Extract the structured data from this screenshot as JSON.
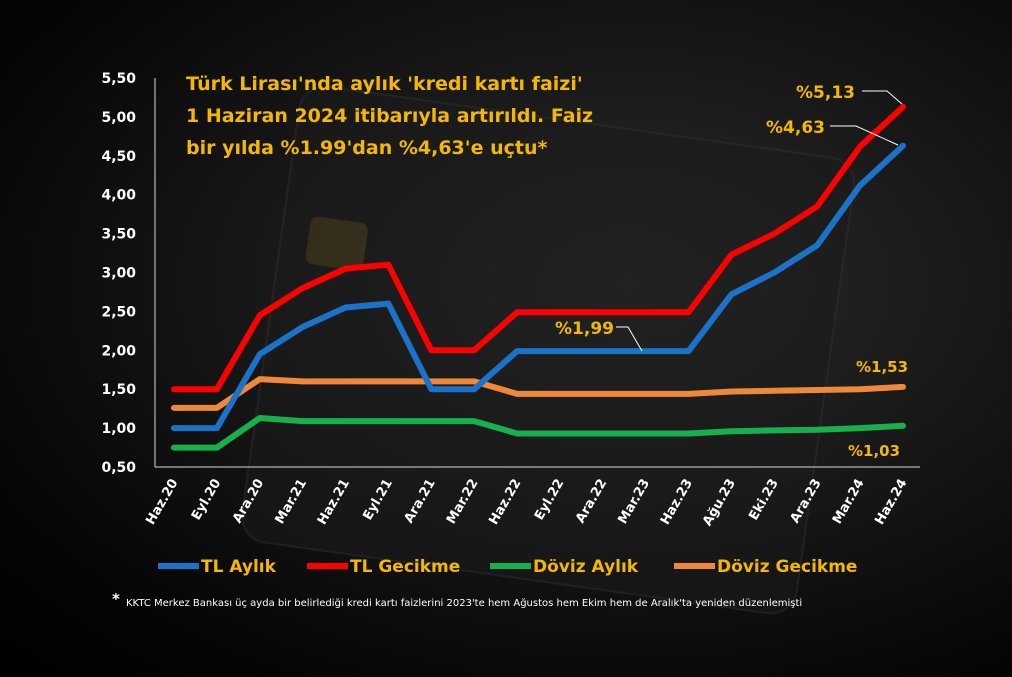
{
  "chart_data": {
    "type": "line",
    "title_lines": [
      "Türk Lirası'nda aylık 'kredi kartı faizi'",
      "1 Haziran 2024 itibarıyla artırıldı. Faiz",
      "bir yılda %1.99'dan %4,63'e uçtu*"
    ],
    "categories": [
      "Haz.20",
      "Eyl.20",
      "Ara.20",
      "Mar.21",
      "Haz.21",
      "Eyl.21",
      "Ara.21",
      "Mar.22",
      "Haz.22",
      "Eyl.22",
      "Ara.22",
      "Mar.23",
      "Haz.23",
      "Ağu.23",
      "Eki.23",
      "Ara.23",
      "Mar.24",
      "Haz.24"
    ],
    "y_ticks": [
      "0,50",
      "1,00",
      "1,50",
      "2,00",
      "2,50",
      "3,00",
      "3,50",
      "4,00",
      "4,50",
      "5,00",
      "5,50"
    ],
    "ylim": [
      0.5,
      5.5
    ],
    "grid": false,
    "legend_position": "bottom",
    "series": [
      {
        "name": "TL Aylık",
        "color": "#1a73c8",
        "values": [
          1.0,
          1.0,
          1.95,
          2.3,
          2.55,
          2.6,
          1.5,
          1.5,
          1.99,
          1.99,
          1.99,
          1.99,
          1.99,
          2.72,
          3.0,
          3.35,
          4.12,
          4.63
        ]
      },
      {
        "name": "TL Gecikme",
        "color": "#ff0000",
        "values": [
          1.5,
          1.5,
          2.45,
          2.8,
          3.05,
          3.1,
          2.0,
          2.0,
          2.49,
          2.49,
          2.49,
          2.49,
          2.49,
          3.23,
          3.5,
          3.85,
          4.62,
          5.13
        ]
      },
      {
        "name": "Döviz Aylık",
        "color": "#17b04c",
        "values": [
          0.75,
          0.75,
          1.13,
          1.09,
          1.09,
          1.09,
          1.09,
          1.09,
          0.93,
          0.93,
          0.93,
          0.93,
          0.93,
          0.96,
          0.97,
          0.98,
          1.0,
          1.03
        ]
      },
      {
        "name": "Döviz Gecikme",
        "color": "#f0883a",
        "values": [
          1.26,
          1.26,
          1.63,
          1.6,
          1.6,
          1.6,
          1.6,
          1.6,
          1.44,
          1.44,
          1.44,
          1.44,
          1.44,
          1.47,
          1.48,
          1.49,
          1.5,
          1.53
        ]
      }
    ],
    "annotations": {
      "tl_gecikme_last": "%5,13",
      "tl_aylik_last": "%4,63",
      "tl_aylik_june23": "%1,99",
      "doviz_gecikme_last": "%1,53",
      "doviz_aylik_last": "%1,03"
    },
    "annotation_colors": {
      "main": "#f5b800",
      "small": "#f5b800"
    }
  },
  "footnote": {
    "marker": "*",
    "text": "KKTC Merkez Bankası üç ayda bir belirlediği kredi kartı faizlerini 2023'te hem Ağustos hem Ekim hem de Aralık'ta yeniden düzenlemişti"
  }
}
